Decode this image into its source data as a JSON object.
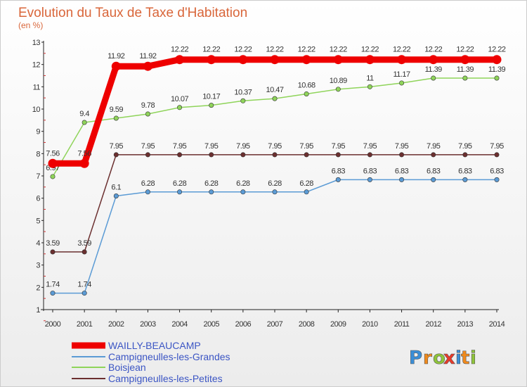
{
  "chart_data": {
    "type": "line",
    "title": "Evolution du Taux de Taxe d'Habitation",
    "subtitle": "(en %)",
    "xlabel": "",
    "ylabel": "",
    "x": [
      "2000",
      "2001",
      "2002",
      "2003",
      "2004",
      "2005",
      "2006",
      "2007",
      "2008",
      "2009",
      "2010",
      "2011",
      "2012",
      "2013",
      "2014"
    ],
    "ylim": [
      1,
      13
    ],
    "yticks": [
      "1",
      "2",
      "3",
      "4",
      "5",
      "6",
      "7",
      "8",
      "9",
      "10",
      "11",
      "12",
      "13"
    ],
    "grid": false,
    "legend_position": "bottom",
    "series": [
      {
        "name": "WAILLY-BEAUCAMP",
        "color": "#ee0000",
        "values": [
          7.56,
          7.56,
          11.92,
          11.92,
          12.22,
          12.22,
          12.22,
          12.22,
          12.22,
          12.22,
          12.22,
          12.22,
          12.22,
          12.22,
          12.22
        ],
        "labels": [
          "7.56",
          "7.56",
          "11.92",
          "11.92",
          "12.22",
          "12.22",
          "12.22",
          "12.22",
          "12.22",
          "12.22",
          "12.22",
          "12.22",
          "12.22",
          "12.22",
          "12.22"
        ]
      },
      {
        "name": "Campigneulles-les-Grandes",
        "color": "#5b9bd5",
        "values": [
          1.74,
          1.74,
          6.1,
          6.28,
          6.28,
          6.28,
          6.28,
          6.28,
          6.28,
          6.83,
          6.83,
          6.83,
          6.83,
          6.83,
          6.83
        ],
        "labels": [
          "1.74",
          "1.74",
          "6.1",
          "6.28",
          "6.28",
          "6.28",
          "6.28",
          "6.28",
          "6.28",
          "6.83",
          "6.83",
          "6.83",
          "6.83",
          "6.83",
          "6.83"
        ]
      },
      {
        "name": "Boisjean",
        "color": "#8fd45a",
        "values": [
          6.97,
          9.4,
          9.59,
          9.78,
          10.07,
          10.17,
          10.37,
          10.47,
          10.68,
          10.89,
          11,
          11.17,
          11.39,
          11.39,
          11.39
        ],
        "labels": [
          "6.97",
          "9.4",
          "9.59",
          "9.78",
          "10.07",
          "10.17",
          "10.37",
          "10.47",
          "10.68",
          "10.89",
          "11",
          "11.17",
          "11.39",
          "11.39",
          "11.39"
        ]
      },
      {
        "name": "Campigneulles-les-Petites",
        "color": "#6b2f2f",
        "values": [
          3.59,
          3.59,
          7.95,
          7.95,
          7.95,
          7.95,
          7.95,
          7.95,
          7.95,
          7.95,
          7.95,
          7.95,
          7.95,
          7.95,
          7.95
        ],
        "labels": [
          "3.59",
          "3.59",
          "7.95",
          "7.95",
          "7.95",
          "7.95",
          "7.95",
          "7.95",
          "7.95",
          "7.95",
          "7.95",
          "7.95",
          "7.95",
          "7.95",
          "7.95"
        ]
      }
    ]
  },
  "logo": {
    "letters": [
      "P",
      "r",
      "o",
      "x",
      "i",
      "t",
      "i"
    ],
    "colors": [
      "#3a8fd8",
      "#f08a1c",
      "#8fc43a",
      "#e83a2a",
      "#3a8fd8",
      "#f08a1c",
      "#8fc43a"
    ]
  }
}
